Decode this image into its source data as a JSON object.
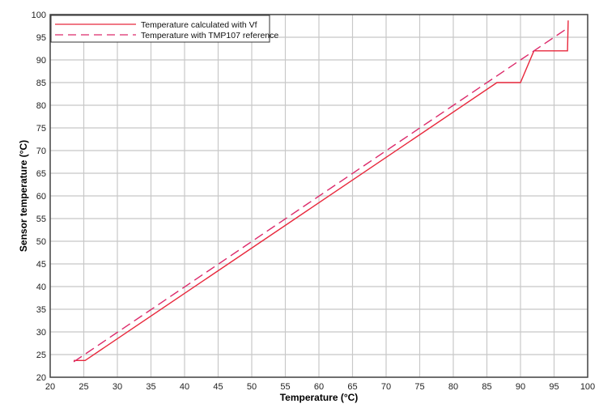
{
  "chart_data": {
    "type": "line",
    "title": "",
    "xlabel": "Temperature (°C)",
    "ylabel": "Sensor temperature (°C)",
    "xlim": [
      20,
      100
    ],
    "ylim": [
      20,
      100
    ],
    "xticks": [
      20,
      25,
      30,
      35,
      40,
      45,
      50,
      55,
      60,
      65,
      70,
      75,
      80,
      85,
      90,
      95,
      100
    ],
    "yticks": [
      20,
      25,
      30,
      35,
      40,
      45,
      50,
      55,
      60,
      65,
      70,
      75,
      80,
      85,
      90,
      95,
      100
    ],
    "grid": true,
    "legend_position": "top-left",
    "series": [
      {
        "name": "Temperature calculated with Vf",
        "style": "solid",
        "color": "#e8283c",
        "x": [
          23.5,
          25.2,
          86.5,
          90.0,
          92.0,
          97.0,
          97.1
        ],
        "y": [
          23.7,
          23.7,
          85.0,
          85.0,
          92.0,
          92.0,
          98.7
        ]
      },
      {
        "name": "Temperature with TMP107 reference",
        "style": "dashed",
        "color": "#dc2a6a",
        "x": [
          23.5,
          97.1
        ],
        "y": [
          23.4,
          97.1
        ]
      }
    ]
  }
}
